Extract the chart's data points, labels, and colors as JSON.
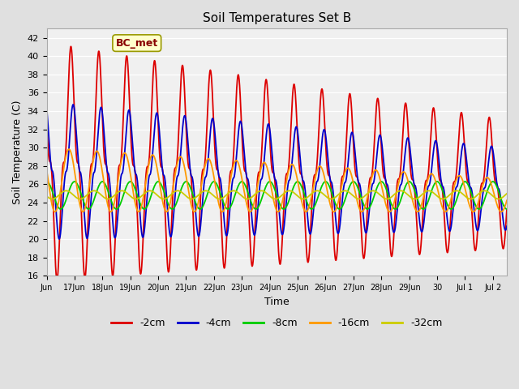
{
  "title": "Soil Temperatures Set B",
  "xlabel": "Time",
  "ylabel": "Soil Temperature (C)",
  "ylim": [
    16,
    43
  ],
  "yticks": [
    16,
    18,
    20,
    22,
    24,
    26,
    28,
    30,
    32,
    34,
    36,
    38,
    40,
    42
  ],
  "annotation": "BC_met",
  "background_color": "#e0e0e0",
  "plot_bg_color": "#f0f0f0",
  "series": {
    "-2cm": {
      "color": "#dd0000",
      "lw": 1.3
    },
    "-4cm": {
      "color": "#0000cc",
      "lw": 1.3
    },
    "-8cm": {
      "color": "#00cc00",
      "lw": 1.3
    },
    "-16cm": {
      "color": "#ff9900",
      "lw": 1.3
    },
    "-32cm": {
      "color": "#cccc00",
      "lw": 1.3
    }
  },
  "xtick_labels": [
    "Jun",
    "17Jun",
    "18Jun",
    "19Jun",
    "20Jun",
    "21Jun",
    "22Jun",
    "23Jun",
    "24Jun",
    "25Jun",
    "26Jun",
    "27Jun",
    "28Jun",
    "29Jun",
    "30",
    "Jul 1",
    "Jul 2"
  ],
  "num_days": 16.5
}
